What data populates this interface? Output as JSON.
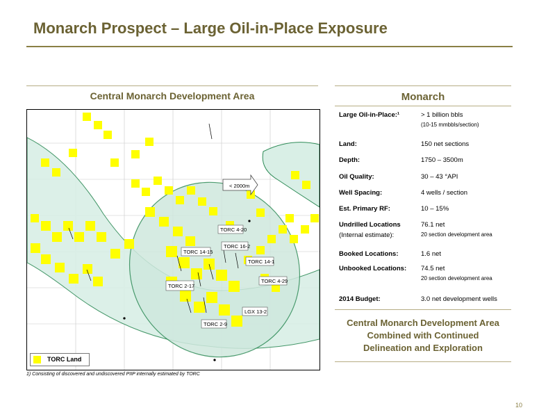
{
  "title": "Monarch Prospect – Large Oil-in-Place Exposure",
  "left": {
    "heading": "Central Monarch Development Area",
    "map": {
      "legend": "TORC Land",
      "arrow_label": "< 2000m",
      "well_labels": [
        "TORC 4-20",
        "TORC 14-15",
        "TORC 16-2",
        "TORC 14-1",
        "TORC 4-29",
        "TORC 2-17",
        "LGX 13-2",
        "TORC 2-9"
      ]
    },
    "footnote": "1) Consisting of discovered and undiscovered PIIP internally estimated by TORC"
  },
  "right": {
    "heading": "Monarch",
    "rows": [
      {
        "label": "Large Oil-in-Place:¹",
        "value": "> 1 billion bbls",
        "sub": "(10-15 mmbbls/section)"
      },
      {
        "label": "Land:",
        "value": "150 net sections"
      },
      {
        "label": "Depth:",
        "value": "1750 – 3500m"
      },
      {
        "label": "Oil Quality:",
        "value": "30 – 43 °API"
      },
      {
        "label": "Well Spacing:",
        "value": "4 wells / section"
      },
      {
        "label": "Est. Primary RF:",
        "value": "10 – 15%"
      },
      {
        "label": "Undrilled Locations",
        "label2": "(Internal estimate):",
        "value": "76.1 net",
        "sub": "20 section development area"
      },
      {
        "label": "Booked Locations:",
        "value": "1.6 net"
      },
      {
        "label": "Unbooked Locations:",
        "value": "74.5 net",
        "sub": "20 section development area"
      },
      {
        "label": "2014 Budget:",
        "value": "3.0 net development wells"
      }
    ],
    "conclusion": [
      "Central Monarch Development Area",
      "Combined with Continued",
      "Delineation and Exploration"
    ]
  },
  "page_number": "10",
  "colors": {
    "accent": "#6b6233",
    "land": "#ffff00",
    "area": "#d9efe6",
    "outline": "#2e8b57"
  }
}
